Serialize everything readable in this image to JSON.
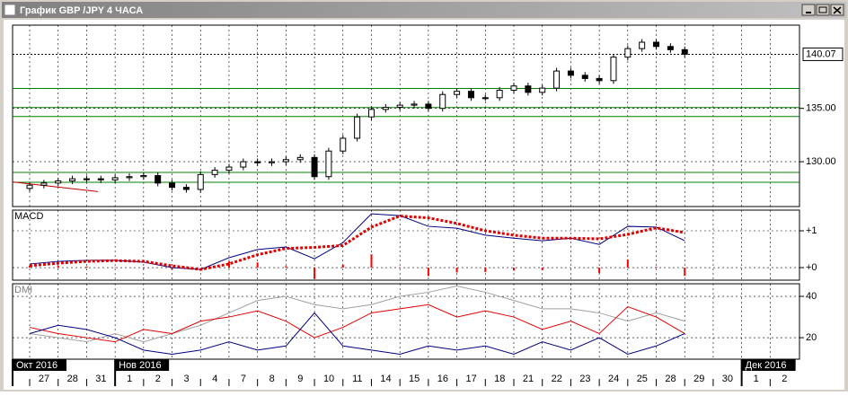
{
  "window_title": "График GBP /JPY 4 ЧАСА",
  "x_axis": {
    "xlim": [
      -0.6,
      27.03
    ],
    "xticks": [
      {
        "value": 0,
        "label": "27"
      },
      {
        "value": 1,
        "label": "28"
      },
      {
        "value": 2,
        "label": "31"
      },
      {
        "value": 3,
        "label": "1"
      },
      {
        "value": 4,
        "label": "2"
      },
      {
        "value": 5,
        "label": "3"
      },
      {
        "value": 6,
        "label": "4"
      },
      {
        "value": 7,
        "label": "7"
      },
      {
        "value": 8,
        "label": "8"
      },
      {
        "value": 9,
        "label": "9"
      },
      {
        "value": 10,
        "label": "10"
      },
      {
        "value": 11,
        "label": "11"
      },
      {
        "value": 12,
        "label": "14"
      },
      {
        "value": 13,
        "label": "15"
      },
      {
        "value": 14,
        "label": "16"
      },
      {
        "value": 15,
        "label": "17"
      },
      {
        "value": 16,
        "label": "18"
      },
      {
        "value": 17,
        "label": "21"
      },
      {
        "value": 18,
        "label": "22"
      },
      {
        "value": 19,
        "label": "23"
      },
      {
        "value": 20,
        "label": "24"
      },
      {
        "value": 21,
        "label": "25"
      },
      {
        "value": 22,
        "label": "28"
      },
      {
        "value": 23,
        "label": "29"
      },
      {
        "value": 24,
        "label": "30"
      },
      {
        "value": 25,
        "label": "1"
      },
      {
        "value": 26,
        "label": "2"
      }
    ],
    "months": [
      {
        "value": -0.6,
        "label": "Окт 2016"
      },
      {
        "value": 3,
        "label": "Нов 2016"
      },
      {
        "value": 25,
        "label": "Дек 2016"
      }
    ]
  },
  "chart_data": [
    {
      "type": "candlestick",
      "ylim": [
        125.8,
        142.8
      ],
      "yticks": [
        {
          "value": 130,
          "label": "130.00"
        },
        {
          "value": 135,
          "label": "135.00"
        }
      ],
      "last_price": 140.07,
      "hlines": {
        "color": "#008000",
        "values": [
          136.87,
          135.08,
          134.24,
          129.0,
          128.07
        ]
      },
      "trendline": {
        "color": "#c00000",
        "x": [
          -0.6,
          2.4
        ],
        "y": [
          128.1,
          127.2
        ]
      },
      "x": [
        0,
        0.5,
        1,
        1.5,
        2,
        2.5,
        3,
        3.5,
        4,
        4.5,
        5,
        5.5,
        6,
        6.5,
        7,
        7.5,
        8,
        8.5,
        9,
        9.5,
        10,
        10.5,
        11,
        11.5,
        12,
        12.5,
        13,
        13.5,
        14,
        14.5,
        15,
        15.5,
        16,
        16.5,
        17,
        17.5,
        18,
        18.5,
        19,
        19.5,
        20,
        20.5,
        21,
        21.5,
        22,
        22.5,
        23
      ],
      "open": [
        127.5,
        127.8,
        128.0,
        128.2,
        128.4,
        128.4,
        128.3,
        128.5,
        128.6,
        128.7,
        128.0,
        127.6,
        127.4,
        128.8,
        129.2,
        129.5,
        130.0,
        129.9,
        130.0,
        130.2,
        130.4,
        128.6,
        131.0,
        132.2,
        134.2,
        134.9,
        135.1,
        135.3,
        135.4,
        135.0,
        136.3,
        136.6,
        136.0,
        136.0,
        136.7,
        137.1,
        136.5,
        136.9,
        138.5,
        138.1,
        137.8,
        137.6,
        139.8,
        140.6,
        141.2,
        140.8,
        140.5
      ],
      "high": [
        128.1,
        128.3,
        128.5,
        128.7,
        128.7,
        128.7,
        128.8,
        128.9,
        129.0,
        129.0,
        128.3,
        127.9,
        129.1,
        129.5,
        129.8,
        130.3,
        130.3,
        130.3,
        130.5,
        130.7,
        130.7,
        131.3,
        132.5,
        134.5,
        135.2,
        135.4,
        135.6,
        135.7,
        135.7,
        136.6,
        136.9,
        136.9,
        136.3,
        137.0,
        137.4,
        137.4,
        137.2,
        138.8,
        138.8,
        138.4,
        138.1,
        140.1,
        140.9,
        141.5,
        141.5,
        141.1,
        140.8
      ],
      "low": [
        127.2,
        127.5,
        127.7,
        127.9,
        128.1,
        128.0,
        128.0,
        128.2,
        128.3,
        127.7,
        127.3,
        127.1,
        127.1,
        128.5,
        128.9,
        129.2,
        129.6,
        129.6,
        129.7,
        129.9,
        128.3,
        128.3,
        130.7,
        131.9,
        133.9,
        134.6,
        134.8,
        135.0,
        134.7,
        134.7,
        136.0,
        135.7,
        135.7,
        135.7,
        136.4,
        136.2,
        136.2,
        136.6,
        137.8,
        137.5,
        137.3,
        137.3,
        139.5,
        140.3,
        140.5,
        140.2,
        139.77
      ],
      "close": [
        127.8,
        128.0,
        128.2,
        128.4,
        128.4,
        128.3,
        128.5,
        128.6,
        128.7,
        128.0,
        127.6,
        127.4,
        128.8,
        129.2,
        129.5,
        130.0,
        129.9,
        130.0,
        130.2,
        130.4,
        128.6,
        131.0,
        132.2,
        134.2,
        134.9,
        135.1,
        135.3,
        135.4,
        135.0,
        136.3,
        136.6,
        136.0,
        136.0,
        136.7,
        137.1,
        136.5,
        136.9,
        138.5,
        138.1,
        137.8,
        137.6,
        139.8,
        140.6,
        141.2,
        140.8,
        140.5,
        140.07
      ]
    },
    {
      "type": "line",
      "label": "MACD",
      "ylim": [
        -0.34,
        1.56
      ],
      "yticks": [
        {
          "value": 1,
          "label": "+1"
        },
        {
          "value": 0,
          "label": "+0"
        }
      ],
      "x": [
        0,
        1,
        2,
        3,
        4,
        5,
        6,
        7,
        8,
        9,
        10,
        11,
        12,
        13,
        14,
        15,
        16,
        17,
        18,
        19,
        20,
        21,
        22,
        23
      ],
      "bars": {
        "color": "#ff0000",
        "values": [
          0.05,
          0.05,
          0.03,
          0.01,
          -0.02,
          -0.05,
          0,
          0.17,
          0.14,
          0.04,
          -0.31,
          0.08,
          0.36,
          0.01,
          -0.23,
          -0.13,
          -0.12,
          -0.08,
          -0.07,
          0,
          -0.15,
          0.22,
          0.02,
          -0.22
        ]
      },
      "series": [
        {
          "color": "#000080",
          "style": "solid",
          "values": [
            0.1,
            0.17,
            0.2,
            0.2,
            0.15,
            0.0,
            -0.05,
            0.27,
            0.49,
            0.56,
            0.24,
            0.68,
            1.46,
            1.41,
            1.12,
            1.07,
            0.88,
            0.8,
            0.73,
            0.8,
            0.63,
            1.12,
            1.1,
            0.73
          ]
        },
        {
          "color": "#e00000",
          "style": "dots",
          "values": [
            0.05,
            0.12,
            0.17,
            0.19,
            0.17,
            0.05,
            -0.05,
            0.1,
            0.35,
            0.52,
            0.55,
            0.6,
            1.1,
            1.4,
            1.35,
            1.2,
            1.0,
            0.88,
            0.8,
            0.8,
            0.78,
            0.9,
            1.08,
            0.95
          ]
        }
      ]
    },
    {
      "type": "line",
      "label": "DMI",
      "ylim": [
        9.6,
        46.1
      ],
      "yticks": [
        40,
        20
      ],
      "x": [
        0,
        1,
        2,
        3,
        4,
        5,
        6,
        7,
        8,
        9,
        10,
        11,
        12,
        13,
        14,
        15,
        16,
        17,
        18,
        19,
        20,
        21,
        22,
        23
      ],
      "series": [
        {
          "color": "#a0a0a0",
          "style": "solid",
          "values": [
            22,
            20,
            18,
            22,
            18,
            22,
            26,
            32,
            38,
            40,
            36,
            34,
            36,
            40,
            42,
            45,
            42,
            38,
            34,
            34,
            32,
            28,
            32,
            28
          ]
        },
        {
          "color": "#e00000",
          "style": "solid",
          "values": [
            25,
            22,
            20,
            18,
            24,
            22,
            28,
            30,
            33,
            28,
            20,
            25,
            32,
            34,
            36,
            30,
            33,
            30,
            24,
            28,
            22,
            35,
            30,
            22
          ]
        },
        {
          "color": "#000080",
          "style": "solid",
          "values": [
            22,
            26,
            24,
            20,
            14,
            12,
            14,
            18,
            14,
            16,
            32,
            16,
            14,
            12,
            16,
            14,
            16,
            12,
            18,
            14,
            20,
            12,
            16,
            22
          ]
        }
      ]
    }
  ]
}
